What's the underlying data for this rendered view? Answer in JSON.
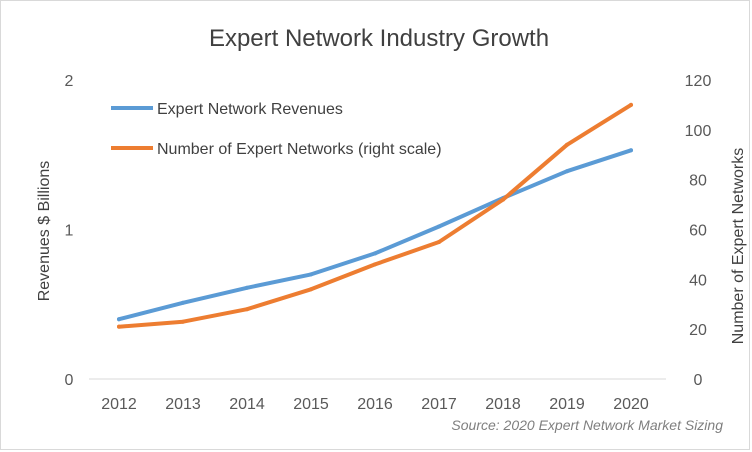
{
  "chart_data": {
    "type": "line",
    "title": "Expert Network Industry Growth",
    "source": "Source: 2020 Expert Network Market Sizing",
    "x": [
      2012,
      2013,
      2014,
      2015,
      2016,
      2017,
      2018,
      2019,
      2020
    ],
    "x_tick_labels": [
      "2012",
      "2013",
      "2014",
      "2015",
      "2016",
      "2017",
      "2018",
      "2019",
      "2020"
    ],
    "ylabel": "Revenues $ Billions",
    "y2label": "Number of Expert Networks",
    "ylim": [
      0,
      2
    ],
    "y2lim": [
      0,
      120
    ],
    "y_ticks": [
      "0",
      "1",
      "2"
    ],
    "y2_ticks": [
      "0",
      "20",
      "40",
      "60",
      "80",
      "100",
      "120"
    ],
    "legend_position": "top-left",
    "grid": false,
    "series": [
      {
        "name": "Expert Network Revenues",
        "axis": "left",
        "color": "#5b9bd5",
        "values": [
          0.4,
          0.51,
          0.61,
          0.7,
          0.84,
          1.02,
          1.21,
          1.39,
          1.53
        ]
      },
      {
        "name": "Number of Expert Networks (right scale)",
        "axis": "right",
        "color": "#ed7d31",
        "values": [
          21,
          23,
          28,
          36,
          46,
          55,
          72,
          94,
          110
        ]
      }
    ]
  }
}
